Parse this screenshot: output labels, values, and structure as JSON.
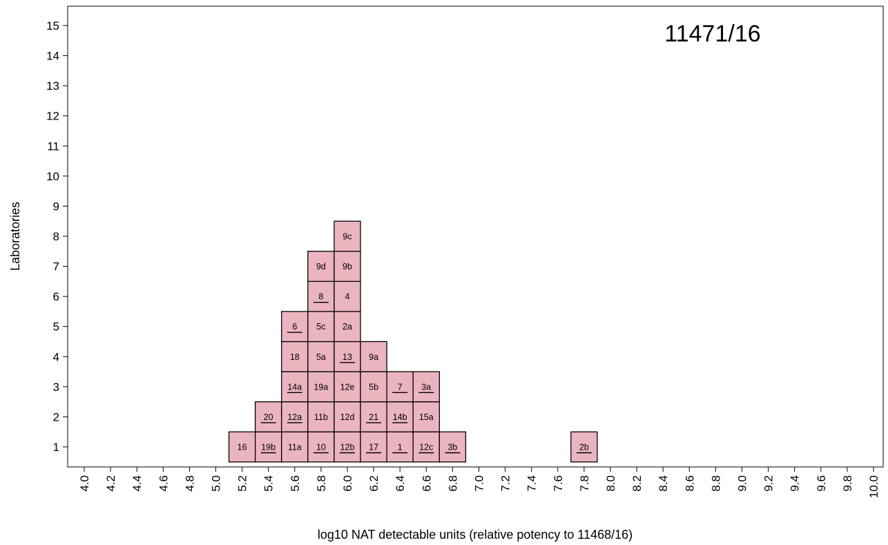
{
  "chart_data": {
    "type": "histogram",
    "title": "11471/16",
    "xlabel": "log10 NAT detectable units (relative potency to 11468/16)",
    "ylabel": "Laboratories",
    "xlim": [
      4.0,
      10.0
    ],
    "ylim": [
      0.5,
      15.7
    ],
    "x_ticks": [
      "4.0",
      "4.2",
      "4.4",
      "4.6",
      "4.8",
      "5.0",
      "5.2",
      "5.4",
      "5.6",
      "5.8",
      "6.0",
      "6.2",
      "6.4",
      "6.6",
      "6.8",
      "7.0",
      "7.2",
      "7.4",
      "7.6",
      "7.8",
      "8.0",
      "8.2",
      "8.4",
      "8.6",
      "8.8",
      "9.0",
      "9.2",
      "9.4",
      "9.6",
      "9.8",
      "10.0"
    ],
    "y_ticks": [
      "1",
      "2",
      "3",
      "4",
      "5",
      "6",
      "7",
      "8",
      "9",
      "10",
      "11",
      "12",
      "13",
      "14",
      "15"
    ],
    "bin_width": 0.2,
    "box_color": "#ebb5bf",
    "bins": [
      {
        "x": 5.2,
        "labels": [
          {
            "text": "16",
            "underline": false
          }
        ]
      },
      {
        "x": 5.4,
        "labels": [
          {
            "text": "19b",
            "underline": true
          },
          {
            "text": "20",
            "underline": true
          }
        ]
      },
      {
        "x": 5.6,
        "labels": [
          {
            "text": "11a",
            "underline": false
          },
          {
            "text": "12a",
            "underline": true
          },
          {
            "text": "14a",
            "underline": true
          },
          {
            "text": "18",
            "underline": false
          },
          {
            "text": "6",
            "underline": true
          }
        ]
      },
      {
        "x": 5.8,
        "labels": [
          {
            "text": "10",
            "underline": true
          },
          {
            "text": "11b",
            "underline": false
          },
          {
            "text": "19a",
            "underline": false
          },
          {
            "text": "5a",
            "underline": false
          },
          {
            "text": "5c",
            "underline": false
          },
          {
            "text": "8",
            "underline": true
          },
          {
            "text": "9d",
            "underline": false
          }
        ]
      },
      {
        "x": 6.0,
        "labels": [
          {
            "text": "12b",
            "underline": true
          },
          {
            "text": "12d",
            "underline": false
          },
          {
            "text": "12e",
            "underline": false
          },
          {
            "text": "13",
            "underline": true
          },
          {
            "text": "2a",
            "underline": false
          },
          {
            "text": "4",
            "underline": false
          },
          {
            "text": "9b",
            "underline": false
          },
          {
            "text": "9c",
            "underline": false
          }
        ]
      },
      {
        "x": 6.2,
        "labels": [
          {
            "text": "17",
            "underline": true
          },
          {
            "text": "21",
            "underline": true
          },
          {
            "text": "5b",
            "underline": false
          },
          {
            "text": "9a",
            "underline": false
          }
        ]
      },
      {
        "x": 6.4,
        "labels": [
          {
            "text": "1",
            "underline": true
          },
          {
            "text": "14b",
            "underline": true
          },
          {
            "text": "7",
            "underline": true
          }
        ]
      },
      {
        "x": 6.6,
        "labels": [
          {
            "text": "12c",
            "underline": true
          },
          {
            "text": "15a",
            "underline": false
          },
          {
            "text": "3a",
            "underline": true
          }
        ]
      },
      {
        "x": 6.8,
        "labels": [
          {
            "text": "3b",
            "underline": true
          }
        ]
      },
      {
        "x": 7.8,
        "labels": [
          {
            "text": "2b",
            "underline": true
          }
        ]
      }
    ]
  }
}
